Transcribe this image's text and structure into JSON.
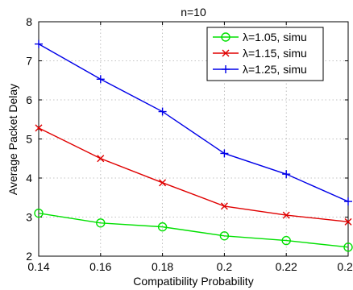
{
  "chart_data": {
    "type": "line",
    "title": "n=10",
    "xlabel": "Compatibility Probability",
    "ylabel": "Average Packet Delay",
    "x": [
      0.14,
      0.16,
      0.18,
      0.2,
      0.22,
      0.24
    ],
    "x_ticks": [
      "0.14",
      "0.16",
      "0.18",
      "0.2",
      "0.22",
      "0.24"
    ],
    "y_ticks": [
      "2",
      "3",
      "4",
      "5",
      "6",
      "7",
      "8"
    ],
    "xlim": [
      0.14,
      0.24
    ],
    "ylim": [
      2,
      8
    ],
    "grid": true,
    "legend_position": "top-right",
    "series": [
      {
        "name": "λ=1.05, simu",
        "color": "#00e000",
        "marker": "circle",
        "values": [
          3.1,
          2.85,
          2.75,
          2.52,
          2.4,
          2.23
        ]
      },
      {
        "name": "λ=1.15, simu",
        "color": "#e00000",
        "marker": "x",
        "values": [
          5.28,
          4.5,
          3.88,
          3.28,
          3.05,
          2.88
        ]
      },
      {
        "name": "λ=1.25, simu",
        "color": "#0000e8",
        "marker": "plus",
        "values": [
          7.43,
          6.53,
          5.7,
          4.63,
          4.1,
          3.4
        ]
      }
    ]
  }
}
